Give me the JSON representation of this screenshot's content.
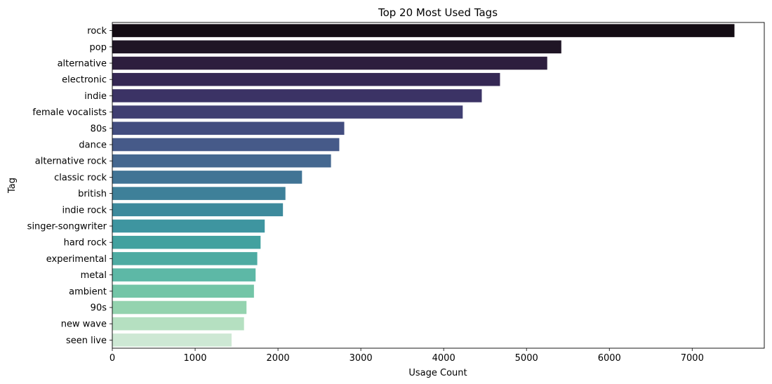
{
  "chart_data": {
    "type": "bar",
    "orientation": "horizontal",
    "title": "Top 20 Most Used Tags",
    "xlabel": "Usage Count",
    "ylabel": "Tag",
    "xlim": [
      0,
      7870
    ],
    "xticks": [
      0,
      1000,
      2000,
      3000,
      4000,
      5000,
      6000,
      7000
    ],
    "grid": false,
    "legend": "none",
    "categories": [
      "rock",
      "pop",
      "alternative",
      "electronic",
      "indie",
      "female vocalists",
      "80s",
      "dance",
      "alternative rock",
      "classic rock",
      "british",
      "indie rock",
      "singer-songwriter",
      "hard rock",
      "experimental",
      "metal",
      "ambient",
      "90s",
      "new wave",
      "seen live"
    ],
    "values": [
      7510,
      5420,
      5250,
      4680,
      4460,
      4230,
      2800,
      2740,
      2640,
      2290,
      2090,
      2060,
      1840,
      1790,
      1750,
      1730,
      1710,
      1620,
      1590,
      1440
    ],
    "colors": [
      "#140c14",
      "#1f1525",
      "#2d1e3e",
      "#352854",
      "#3b3365",
      "#403f72",
      "#434d7f",
      "#465a89",
      "#456890",
      "#417495",
      "#3e8099",
      "#3d8a9c",
      "#3e95a0",
      "#42a19f",
      "#4eaba2",
      "#5db8a6",
      "#73c5a7",
      "#94d3af",
      "#b5e0c1",
      "#cde8d4"
    ]
  }
}
